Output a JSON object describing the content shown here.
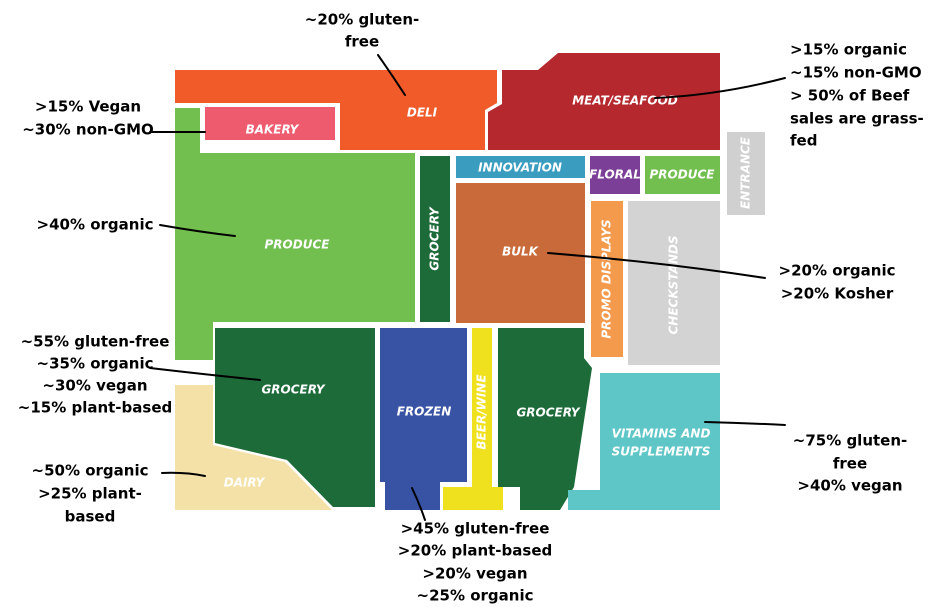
{
  "sections": [
    {
      "lines": [
        "DELI"
      ]
    },
    {
      "lines": [
        "MEAT/SEAFOOD"
      ]
    },
    {
      "lines": [
        "BAKERY"
      ]
    },
    {
      "lines": [
        "PRODUCE"
      ]
    },
    {
      "lines": [
        "GROCERY"
      ]
    },
    {
      "lines": [
        "INNOVATION"
      ]
    },
    {
      "lines": [
        "FLORAL"
      ]
    },
    {
      "lines": [
        "PRODUCE"
      ]
    },
    {
      "lines": [
        "ENTRANCE"
      ]
    },
    {
      "lines": [
        "BULK"
      ]
    },
    {
      "lines": [
        "PROMO DISPLAYS"
      ]
    },
    {
      "lines": [
        "CHECKSTANDS"
      ]
    },
    {
      "lines": [
        "GROCERY"
      ]
    },
    {
      "lines": [
        "DAIRY"
      ]
    },
    {
      "lines": [
        "FROZEN"
      ]
    },
    {
      "lines": [
        "BEER/WINE"
      ]
    },
    {
      "lines": [
        "GROCERY"
      ]
    },
    {
      "lines": [
        "VITAMINS AND",
        "SUPPLEMENTS"
      ]
    }
  ],
  "annotations": [
    {
      "lines": [
        "~20% gluten-",
        "free"
      ]
    },
    {
      "lines": [
        ">15% organic",
        "~15% non-GMO",
        "> 50% of Beef",
        "sales are grass-",
        "fed"
      ]
    },
    {
      "lines": [
        ">15% Vegan",
        "~30% non-GMO"
      ]
    },
    {
      "lines": [
        ">40% organic"
      ]
    },
    {
      "lines": [
        "~55% gluten-free",
        "~35% organic",
        "~30% vegan",
        "~15% plant-based"
      ]
    },
    {
      "lines": [
        "~50% organic",
        ">25% plant-",
        "based"
      ]
    },
    {
      "lines": [
        ">45% gluten-free",
        ">20% plant-based",
        ">20% vegan",
        "~25% organic"
      ]
    },
    {
      "lines": [
        ">20% organic",
        ">20% Kosher"
      ]
    },
    {
      "lines": [
        "~75% gluten-",
        "free",
        ">40% vegan"
      ]
    }
  ]
}
